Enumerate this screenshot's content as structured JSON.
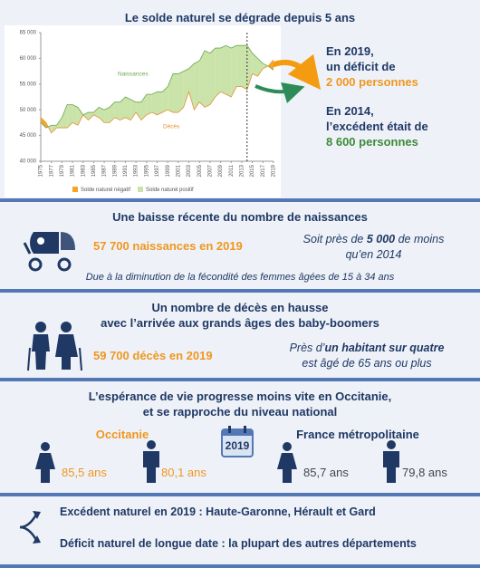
{
  "title": "Le solde naturel se dégrade depuis 5 ans",
  "chart_data": {
    "type": "area-difference",
    "x": [
      1975,
      1976,
      1977,
      1978,
      1979,
      1980,
      1981,
      1982,
      1983,
      1984,
      1985,
      1986,
      1987,
      1988,
      1989,
      1990,
      1991,
      1992,
      1993,
      1994,
      1995,
      1996,
      1997,
      1998,
      1999,
      2000,
      2001,
      2002,
      2003,
      2004,
      2005,
      2006,
      2007,
      2008,
      2009,
      2010,
      2011,
      2012,
      2013,
      2014,
      2015,
      2016,
      2017,
      2018,
      2019
    ],
    "series": [
      {
        "name": "Naissances",
        "color": "#6aa84f",
        "values": [
          47500,
          46500,
          47000,
          47000,
          48500,
          51000,
          51000,
          50500,
          49000,
          49500,
          49500,
          50500,
          50000,
          50500,
          51500,
          51500,
          52500,
          52000,
          51500,
          51500,
          53000,
          53000,
          53500,
          53500,
          54500,
          57000,
          57000,
          57500,
          58000,
          59000,
          59500,
          61500,
          61000,
          62000,
          62000,
          62500,
          62000,
          62500,
          62500,
          62500,
          61000,
          60000,
          59000,
          58500,
          57700
        ]
      },
      {
        "name": "Décès",
        "color": "#e69138",
        "values": [
          48500,
          47500,
          45500,
          46500,
          46500,
          46500,
          47500,
          47000,
          49000,
          48000,
          49000,
          48500,
          47500,
          47500,
          48500,
          48000,
          48500,
          48000,
          49500,
          48000,
          49000,
          49500,
          49000,
          49500,
          50000,
          49500,
          49500,
          50500,
          53500,
          50000,
          51500,
          50500,
          51000,
          52500,
          53500,
          53000,
          52500,
          54500,
          54500,
          53900,
          57000,
          56500,
          58000,
          58500,
          59700
        ]
      }
    ],
    "legend": [
      {
        "name": "Solde naturel négatif",
        "color": "#f5a623"
      },
      {
        "name": "Solde naturel positif",
        "color": "#c9e3a9"
      }
    ],
    "xlim": [
      1975,
      2019
    ],
    "xticks": [
      1975,
      1977,
      1979,
      1981,
      1983,
      1985,
      1987,
      1989,
      1991,
      1993,
      1995,
      1997,
      1999,
      2001,
      2003,
      2005,
      2007,
      2009,
      2011,
      2013,
      2015,
      2017,
      2019
    ],
    "ylim": [
      40000,
      65000
    ],
    "yticks": [
      {
        "value": 40000,
        "label": "40 000"
      },
      {
        "value": 45000,
        "label": "45 000"
      },
      {
        "value": 50000,
        "label": "50 000"
      },
      {
        "value": 55000,
        "label": "55 000"
      },
      {
        "value": 60000,
        "label": "60 000"
      },
      {
        "value": 65000,
        "label": "65 000"
      }
    ],
    "marker_x": 2014
  },
  "side_notes": [
    {
      "lines": [
        "En 2019,",
        "un déficit de"
      ],
      "highlight": "2 000 personnes"
    },
    {
      "lines": [
        "En 2014,",
        "l’excédent était de"
      ],
      "highlight": "8 600 personnes"
    }
  ],
  "births": {
    "title": "Une baisse récente du nombre de naissances",
    "key": "57 700 naissances en 2019",
    "comment": [
      "Soit près de ",
      "5 000",
      " de moins",
      "qu’en 2014"
    ],
    "note": "Due à la diminution de la fécondité des femmes âgées de 15 à 34 ans"
  },
  "deaths": {
    "title": [
      "Un nombre de décès en hausse",
      "avec l’arrivée aux grands âges des baby-boomers"
    ],
    "key": "59 700 décès en 2019",
    "comment": [
      "Près d’",
      "un habitant sur quatre",
      "est âgé de 65 ans ou plus"
    ]
  },
  "life": {
    "title": [
      "L’espérance de vie progresse moins vite en Occitanie,",
      "et se rapproche du niveau national"
    ],
    "year": "2019",
    "regions": [
      {
        "name": "Occitanie",
        "women": "85,5 ans",
        "men": "80,1 ans"
      },
      {
        "name": "France métropolitaine",
        "women": "85,7 ans",
        "men": "79,8 ans"
      }
    ]
  },
  "departments": [
    "Excédent naturel en 2019 : Haute-Garonne, Hérault et Gard",
    "Déficit naturel de longue date : la plupart des autres départements"
  ]
}
